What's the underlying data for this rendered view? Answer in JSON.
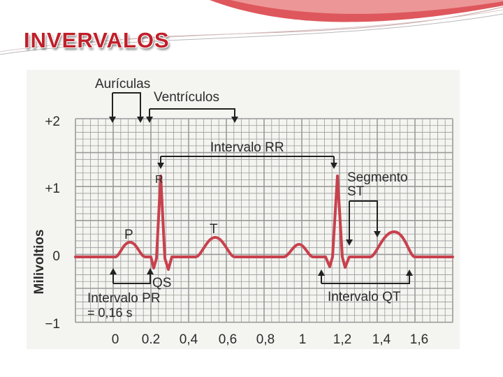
{
  "slide": {
    "title": "INVERVALOS",
    "accent_color": "#c0202a"
  },
  "ecg": {
    "trace_color": "#c8414d",
    "grid_color": "#9a9a9a",
    "x_ticks": [
      "0",
      "0.2",
      "0,4",
      "0,6",
      "0,8",
      "1",
      "1,2",
      "1,4",
      "1,6"
    ],
    "y_ticks": [
      "+2",
      "+1",
      "0",
      "−1"
    ],
    "y_axis_label": "Milivoltios",
    "wave_labels": {
      "p": "P",
      "r": "R",
      "t": "T",
      "qs": "QS"
    },
    "annotations": {
      "auriculas": "Aurículas",
      "ventriculos": "Ventrículos",
      "rr": "Intervalo RR",
      "st_line1": "Segmento",
      "st_line2": "ST",
      "pr_line1": "Intervalo PR",
      "pr_line2": "= 0,16 s",
      "qt": "Intervalo QT"
    }
  }
}
